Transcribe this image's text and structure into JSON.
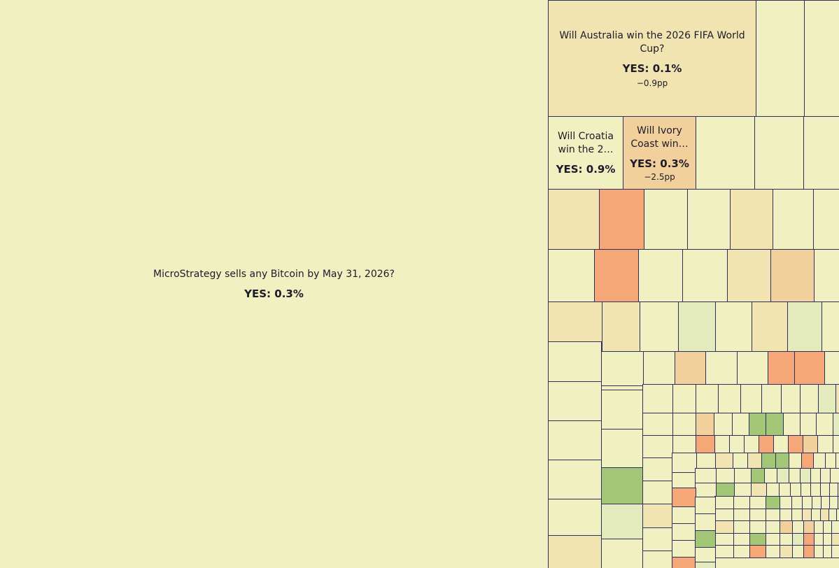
{
  "chart_data": {
    "type": "treemap",
    "colors": {
      "background": "#f1f0c0",
      "border": "#2e2f5e",
      "neutral": "#f1f0c0",
      "warm_light": "#f1e4b1",
      "warm_mid": "#f2d09c",
      "warm_strong": "#f5a777",
      "cool_light": "#e3eabb",
      "cool_strong": "#a3c677"
    },
    "labeled_markets": [
      {
        "question": "MicroStrategy sells any Bitcoin by May 31, 2026?",
        "yes_label": "YES: 0.3%",
        "yes": 0.3,
        "change_label": "",
        "color": "neutral"
      },
      {
        "question": "Will Australia win the 2026 FIFA World Cup?",
        "yes_label": "YES: 0.1%",
        "yes": 0.1,
        "change_label": "−0.9pp",
        "change": -0.9,
        "color": "warm_light"
      },
      {
        "question": "Will Croatia win the 2…",
        "yes_label": "YES: 0.9%",
        "yes": 0.9,
        "change_label": "",
        "color": "neutral"
      },
      {
        "question": "Will Ivory Coast win…",
        "yes_label": "YES: 0.3%",
        "yes": 0.3,
        "change_label": "−2.5pp",
        "change": -2.5,
        "color": "warm_mid"
      }
    ],
    "unlabeled_rows": [
      [
        "neutral",
        "neutral",
        "neutral"
      ],
      [
        "neutral",
        "neutral",
        "neutral"
      ],
      [
        "warm_light",
        "warm_strong",
        "neutral",
        "neutral",
        "warm_light",
        "neutral",
        "neutral"
      ],
      [
        "neutral",
        "warm_strong",
        "neutral",
        "neutral",
        "warm_light",
        "warm_mid",
        "neutral"
      ],
      [
        "warm_light",
        "warm_light",
        "neutral",
        "cool_light",
        "neutral",
        "warm_light",
        "cool_light",
        "neutral"
      ],
      [
        "neutral",
        "neutral",
        "warm_mid",
        "neutral",
        "neutral",
        "warm_strong",
        "warm_strong",
        "neutral",
        "neutral"
      ],
      [
        "neutral",
        "neutral",
        "neutral",
        "neutral",
        "neutral",
        "neutral",
        "neutral",
        "neutral",
        "cool_light",
        "warm_light",
        "neutral"
      ],
      [
        "neutral",
        "neutral",
        "warm_mid",
        "neutral",
        "neutral",
        "cool_strong",
        "cool_strong",
        "neutral",
        "neutral",
        "neutral",
        "cool_light",
        "cool_strong"
      ],
      [
        "neutral",
        "neutral",
        "warm_strong",
        "neutral",
        "neutral",
        "neutral",
        "warm_strong",
        "neutral",
        "warm_strong",
        "warm_mid",
        "neutral",
        "neutral",
        "warm_light",
        "neutral"
      ],
      [
        "neutral",
        "neutral",
        "warm_light",
        "neutral",
        "warm_light",
        "cool_strong",
        "cool_strong",
        "neutral",
        "warm_strong",
        "neutral",
        "neutral",
        "neutral",
        "cool_light"
      ],
      [
        "neutral",
        "neutral",
        "neutral",
        "cool_strong",
        "neutral",
        "cool_light",
        "neutral",
        "cool_light",
        "neutral",
        "neutral",
        "neutral",
        "neutral",
        "cool_strong",
        "neutral"
      ],
      [
        "neutral",
        "cool_strong",
        "neutral",
        "warm_light",
        "neutral",
        "neutral",
        "neutral",
        "neutral",
        "neutral",
        "neutral",
        "neutral",
        "neutral",
        "neutral",
        "neutral"
      ],
      [
        "neutral",
        "neutral",
        "neutral",
        "cool_strong",
        "neutral",
        "neutral",
        "neutral",
        "neutral",
        "neutral",
        "neutral",
        "neutral",
        "neutral",
        "neutral",
        "neutral",
        "neutral"
      ],
      [
        "neutral",
        "neutral",
        "neutral",
        "neutral",
        "neutral",
        "neutral",
        "warm_light",
        "neutral",
        "warm_light",
        "neutral",
        "neutral",
        "neutral",
        "neutral",
        "neutral",
        "neutral"
      ],
      [
        "warm_light",
        "neutral",
        "neutral",
        "neutral",
        "warm_mid",
        "neutral",
        "warm_mid",
        "neutral",
        "neutral",
        "neutral",
        "neutral",
        "neutral",
        "neutral",
        "neutral",
        "neutral",
        "neutral"
      ],
      [
        "neutral",
        "neutral",
        "cool_strong",
        "neutral",
        "neutral",
        "cool_light",
        "warm_strong",
        "neutral",
        "neutral",
        "warm_light",
        "neutral",
        "neutral",
        "neutral",
        "neutral",
        "neutral"
      ],
      [
        "neutral",
        "neutral",
        "warm_strong",
        "neutral",
        "warm_light",
        "neutral",
        "warm_strong",
        "neutral",
        "neutral",
        "neutral",
        "warm_light",
        "neutral",
        "neutral",
        "neutral",
        "neutral",
        "neutral"
      ]
    ]
  }
}
